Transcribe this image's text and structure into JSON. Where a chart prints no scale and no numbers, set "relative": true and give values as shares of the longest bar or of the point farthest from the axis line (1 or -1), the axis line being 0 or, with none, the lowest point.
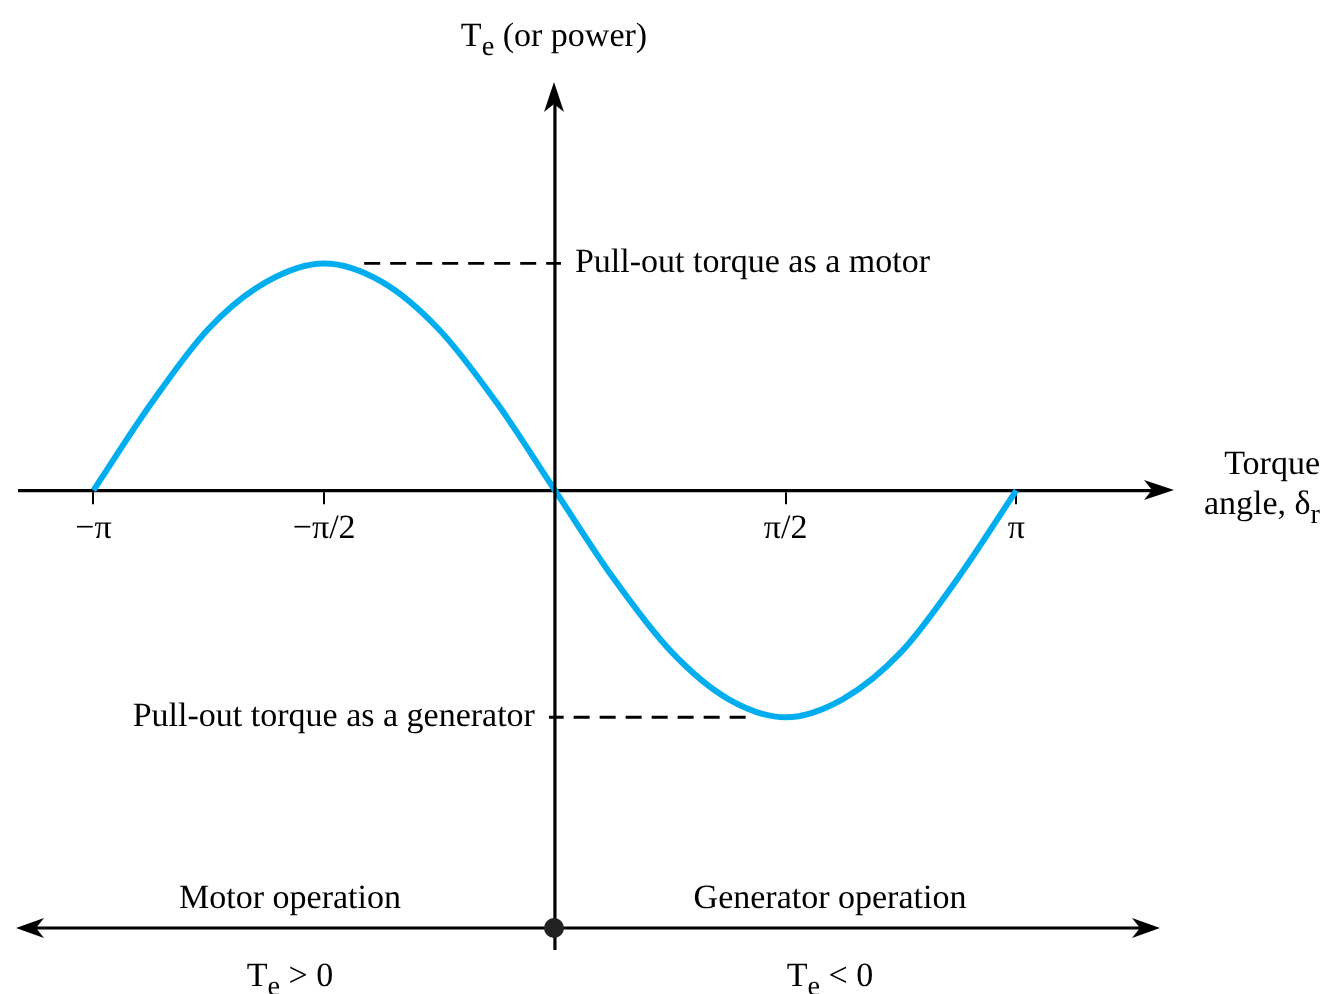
{
  "chart_data": {
    "type": "line",
    "relative": true,
    "xlabel": "Torque angle, δ$_{r}$",
    "x": [
      -3.14,
      -2.75,
      -2.36,
      -1.96,
      -1.57,
      -1.18,
      -0.79,
      -0.39,
      0,
      0.39,
      0.79,
      1.18,
      1.57,
      1.96,
      2.36,
      2.75,
      3.14
    ],
    "series": [
      {
        "color": "#00aeef",
        "values": [
          0,
          0.38,
          0.71,
          0.92,
          1,
          0.92,
          0.71,
          0.38,
          0,
          -0.38,
          -0.71,
          -0.92,
          -1,
          -0.92,
          -0.71,
          -0.38,
          0
        ]
      }
    ],
    "xlim": [
      -3.64,
      4.09
    ],
    "xticks": [
      {
        "value": -3.14,
        "label": "−π"
      },
      {
        "value": -1.57,
        "label": "−π/2"
      },
      {
        "value": 1.57,
        "label": "π/2"
      },
      {
        "value": 3.14,
        "label": "π"
      }
    ],
    "ref_lines": [
      {
        "axis": "y",
        "value": 1,
        "label": "Pull-out torque as a motor",
        "line_style": "dashed"
      },
      {
        "axis": "y",
        "value": -1,
        "label": "Pull-out torque as a generator",
        "line_style": "dashed"
      }
    ],
    "annotations": [
      "Motor operation",
      "Generator operation",
      "T$_{e}$ > 0",
      "T$_{e}$ < 0",
      "T$_{e}$ (or power)"
    ],
    "grid": false,
    "legend": false,
    "marker": "none",
    "line_style": "solid"
  }
}
